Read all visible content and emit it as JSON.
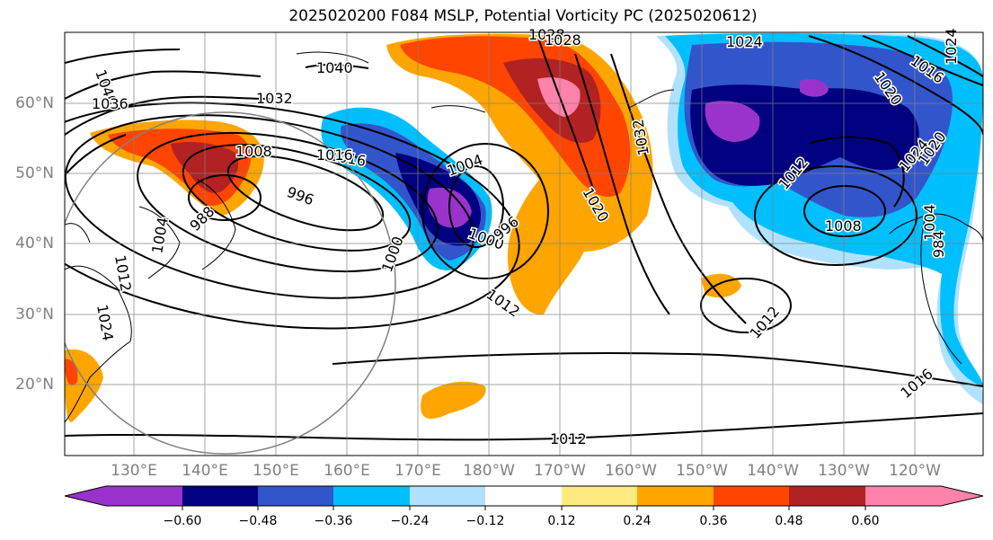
{
  "title": "2025020200 F084 MSLP, Potential Vorticity PC (2025020612)",
  "lat_labels": [
    "60°N",
    "50°N",
    "40°N",
    "30°N",
    "20°N"
  ],
  "lon_labels": [
    "130°E",
    "140°E",
    "150°E",
    "160°E",
    "170°E",
    "180°W",
    "170°W",
    "160°W",
    "150°W",
    "140°W",
    "130°W",
    "120°W"
  ],
  "contour_labels": [
    "1040",
    "1036",
    "1032",
    "1040",
    "1028",
    "1024",
    "1008",
    "996",
    "988",
    "1004",
    "1016",
    "1004",
    "1000",
    "1000",
    "996",
    "1020",
    "1032",
    "1012",
    "1008",
    "1012",
    "1016",
    "1012",
    "1020",
    "1012",
    "1024",
    "1016",
    "1024",
    "1004",
    "984",
    "1024",
    "1012",
    "1028",
    "1020",
    "1016"
  ],
  "colorbar": {
    "tick_labels": [
      "−0.60",
      "−0.48",
      "−0.36",
      "−0.24",
      "−0.12",
      "0.12",
      "0.24",
      "0.36",
      "0.48",
      "0.60"
    ],
    "colors": [
      "#9933cc",
      "#000080",
      "#3355cc",
      "#00bfff",
      "#b0e2ff",
      "#ffffff",
      "#ffea80",
      "#ffa500",
      "#ff4500",
      "#b22222",
      "#ff82ab"
    ]
  },
  "pv_colors": {
    "purple": "#9933cc",
    "navy": "#000080",
    "royal": "#3355cc",
    "sky": "#00bfff",
    "light": "#b0e2ff",
    "yellow": "#ffea80",
    "orange": "#ffa500",
    "red": "#ff4500",
    "firebrick": "#b22222",
    "pink": "#ff82ab"
  }
}
